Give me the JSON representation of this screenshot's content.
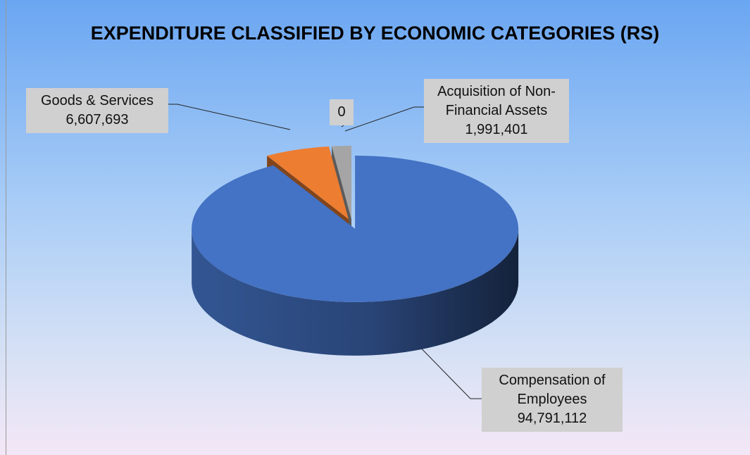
{
  "chart_data": {
    "type": "pie",
    "title": "EXPENDITURE CLASSIFIED BY ECONOMIC CATEGORIES (RS)",
    "categories": [
      "Compensation of Employees",
      "Goods & Services",
      null,
      "Acquisition of Non-Financial Assets"
    ],
    "values": [
      94791112,
      6607693,
      0,
      1991401
    ],
    "value_labels": [
      "94,791,112",
      "6,607,693",
      "0",
      "1,991,401"
    ],
    "colors": [
      "#4472c4",
      "#ed7d31",
      "#ffc000",
      "#a5a5a5"
    ]
  }
}
